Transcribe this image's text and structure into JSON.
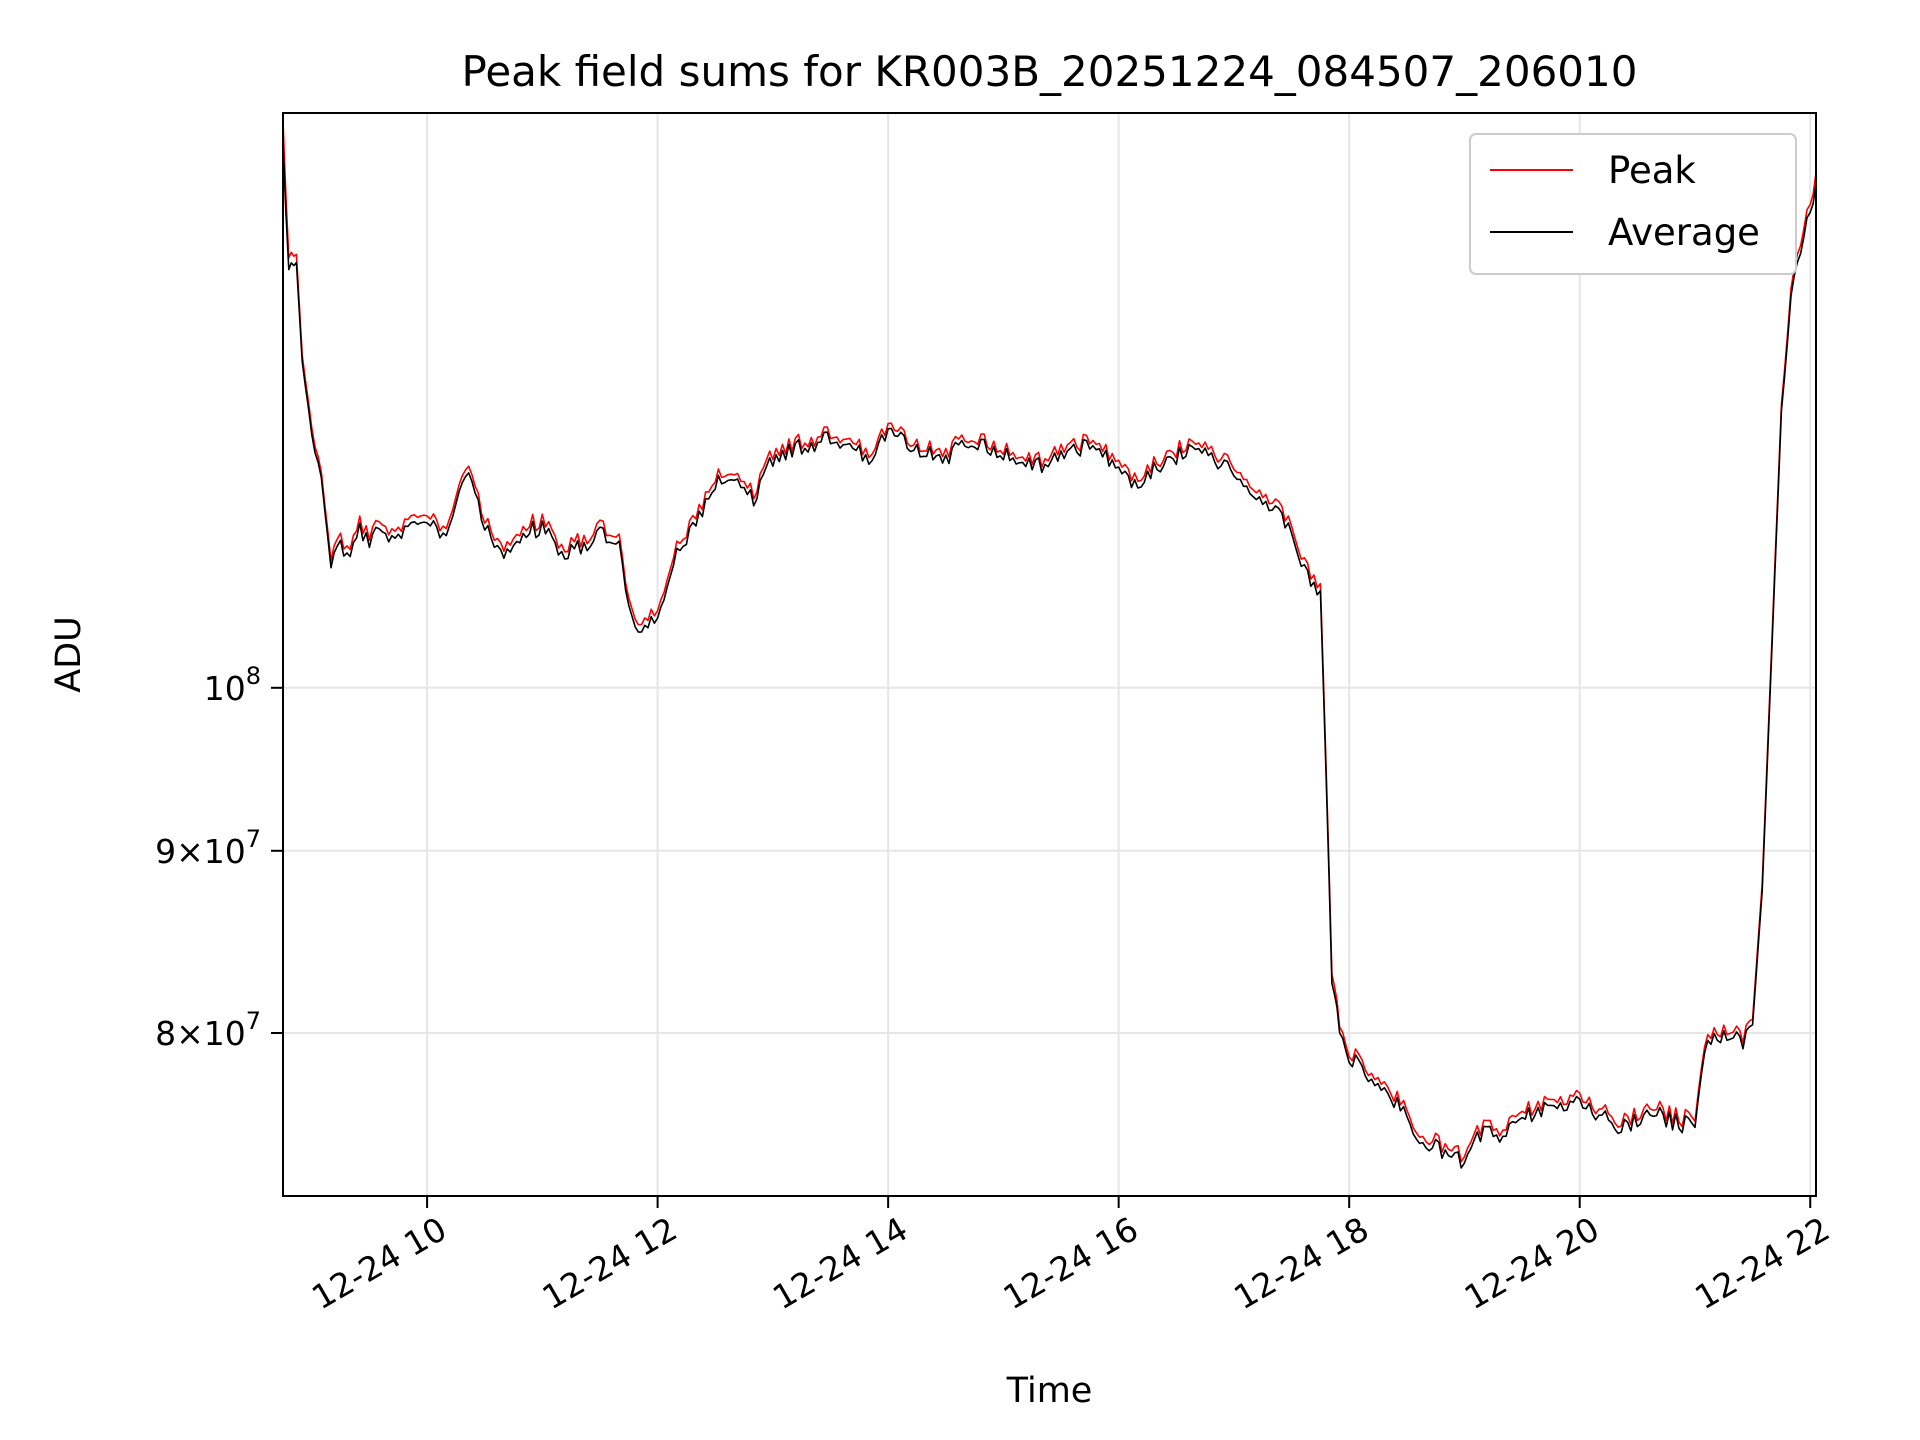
{
  "chart_data": {
    "type": "line",
    "title": "Peak field sums for KR003B_20251224_084507_206010",
    "xlabel": "Time",
    "ylabel": "ADU",
    "xscale": "time",
    "yscale": "log",
    "xlim": [
      "2025-12-24 08:45",
      "2025-12-24 22:03"
    ],
    "ylim": [
      72000000,
      145000000
    ],
    "grid": true,
    "legend_position": "top-right",
    "x_ticks": [
      {
        "value": "2025-12-24 10:00",
        "label": "12-24 10"
      },
      {
        "value": "2025-12-24 12:00",
        "label": "12-24 12"
      },
      {
        "value": "2025-12-24 14:00",
        "label": "12-24 14"
      },
      {
        "value": "2025-12-24 16:00",
        "label": "12-24 16"
      },
      {
        "value": "2025-12-24 18:00",
        "label": "12-24 18"
      },
      {
        "value": "2025-12-24 20:00",
        "label": "12-24 20"
      },
      {
        "value": "2025-12-24 22:00",
        "label": "12-24 22"
      }
    ],
    "y_ticks": [
      {
        "value": 100000000,
        "mantissa": "",
        "exponent": "8"
      },
      {
        "value": 90000000,
        "mantissa": "9",
        "exponent": "7"
      },
      {
        "value": 80000000,
        "mantissa": "8",
        "exponent": "7"
      }
    ],
    "series": [
      {
        "name": "Peak",
        "color": "#ff0000",
        "x": [
          "2025-12-24 08:45",
          "2025-12-24 08:48",
          "2025-12-24 08:52",
          "2025-12-24 08:55",
          "2025-12-24 09:00",
          "2025-12-24 09:05",
          "2025-12-24 09:10",
          "2025-12-24 09:15",
          "2025-12-24 09:20",
          "2025-12-24 09:25",
          "2025-12-24 09:30",
          "2025-12-24 09:35",
          "2025-12-24 09:40",
          "2025-12-24 09:45",
          "2025-12-24 09:50",
          "2025-12-24 10:00",
          "2025-12-24 10:10",
          "2025-12-24 10:20",
          "2025-12-24 10:30",
          "2025-12-24 10:40",
          "2025-12-24 10:50",
          "2025-12-24 11:00",
          "2025-12-24 11:10",
          "2025-12-24 11:20",
          "2025-12-24 11:30",
          "2025-12-24 11:40",
          "2025-12-24 11:45",
          "2025-12-24 11:50",
          "2025-12-24 11:55",
          "2025-12-24 12:00",
          "2025-12-24 12:10",
          "2025-12-24 12:20",
          "2025-12-24 12:30",
          "2025-12-24 12:40",
          "2025-12-24 12:50",
          "2025-12-24 13:00",
          "2025-12-24 13:10",
          "2025-12-24 13:20",
          "2025-12-24 13:30",
          "2025-12-24 13:40",
          "2025-12-24 13:50",
          "2025-12-24 14:00",
          "2025-12-24 14:10",
          "2025-12-24 14:20",
          "2025-12-24 14:30",
          "2025-12-24 14:40",
          "2025-12-24 14:50",
          "2025-12-24 15:00",
          "2025-12-24 15:10",
          "2025-12-24 15:20",
          "2025-12-24 15:30",
          "2025-12-24 15:40",
          "2025-12-24 15:50",
          "2025-12-24 16:00",
          "2025-12-24 16:10",
          "2025-12-24 16:20",
          "2025-12-24 16:30",
          "2025-12-24 16:40",
          "2025-12-24 16:50",
          "2025-12-24 17:00",
          "2025-12-24 17:10",
          "2025-12-24 17:20",
          "2025-12-24 17:30",
          "2025-12-24 17:35",
          "2025-12-24 17:40",
          "2025-12-24 17:45",
          "2025-12-24 17:48",
          "2025-12-24 17:51",
          "2025-12-24 17:55",
          "2025-12-24 18:00",
          "2025-12-24 18:10",
          "2025-12-24 18:20",
          "2025-12-24 18:30",
          "2025-12-24 18:40",
          "2025-12-24 18:50",
          "2025-12-24 19:00",
          "2025-12-24 19:10",
          "2025-12-24 19:20",
          "2025-12-24 19:30",
          "2025-12-24 19:40",
          "2025-12-24 19:50",
          "2025-12-24 20:00",
          "2025-12-24 20:10",
          "2025-12-24 20:20",
          "2025-12-24 20:30",
          "2025-12-24 20:40",
          "2025-12-24 20:50",
          "2025-12-24 21:00",
          "2025-12-24 21:05",
          "2025-12-24 21:15",
          "2025-12-24 21:25",
          "2025-12-24 21:30",
          "2025-12-24 21:35",
          "2025-12-24 21:40",
          "2025-12-24 21:45",
          "2025-12-24 21:50",
          "2025-12-24 21:55",
          "2025-12-24 22:00",
          "2025-12-24 22:03"
        ],
        "y": [
          144000000,
          131500000,
          132500000,
          124000000,
          118500000,
          115000000,
          108500000,
          110500000,
          109000000,
          111500000,
          110000000,
          111500000,
          111000000,
          110500000,
          111500000,
          112000000,
          110800000,
          115500000,
          111500000,
          109200000,
          111000000,
          111500000,
          109500000,
          110000000,
          111000000,
          110500000,
          105500000,
          104000000,
          104500000,
          105000000,
          109500000,
          111500000,
          114500000,
          115000000,
          113500000,
          116500000,
          117000000,
          117500000,
          117800000,
          117200000,
          116500000,
          118200000,
          117500000,
          117000000,
          116500000,
          117800000,
          117200000,
          116800000,
          116000000,
          115800000,
          116500000,
          117200000,
          116800000,
          115500000,
          114500000,
          115800000,
          116500000,
          117500000,
          116500000,
          115500000,
          114200000,
          112500000,
          111500000,
          108500000,
          107500000,
          107000000,
          95000000,
          83500000,
          80500000,
          79200000,
          78000000,
          77200000,
          76000000,
          74800000,
          74300000,
          73800000,
          75500000,
          75200000,
          76000000,
          76300000,
          76700000,
          77000000,
          76200000,
          75600000,
          75900000,
          76200000,
          75800000,
          75600000,
          79500000,
          80300000,
          79800000,
          80700000,
          88000000,
          103000000,
          120000000,
          129000000,
          133500000,
          136500000,
          139500000
        ]
      },
      {
        "name": "Average",
        "color": "#000000",
        "x": [
          "2025-12-24 08:45",
          "2025-12-24 08:48",
          "2025-12-24 08:52",
          "2025-12-24 08:55",
          "2025-12-24 09:00",
          "2025-12-24 09:05",
          "2025-12-24 09:10",
          "2025-12-24 09:15",
          "2025-12-24 09:20",
          "2025-12-24 09:25",
          "2025-12-24 09:30",
          "2025-12-24 09:35",
          "2025-12-24 09:40",
          "2025-12-24 09:45",
          "2025-12-24 09:50",
          "2025-12-24 10:00",
          "2025-12-24 10:10",
          "2025-12-24 10:20",
          "2025-12-24 10:30",
          "2025-12-24 10:40",
          "2025-12-24 10:50",
          "2025-12-24 11:00",
          "2025-12-24 11:10",
          "2025-12-24 11:20",
          "2025-12-24 11:30",
          "2025-12-24 11:40",
          "2025-12-24 11:45",
          "2025-12-24 11:50",
          "2025-12-24 11:55",
          "2025-12-24 12:00",
          "2025-12-24 12:10",
          "2025-12-24 12:20",
          "2025-12-24 12:30",
          "2025-12-24 12:40",
          "2025-12-24 12:50",
          "2025-12-24 13:00",
          "2025-12-24 13:10",
          "2025-12-24 13:20",
          "2025-12-24 13:30",
          "2025-12-24 13:40",
          "2025-12-24 13:50",
          "2025-12-24 14:00",
          "2025-12-24 14:10",
          "2025-12-24 14:20",
          "2025-12-24 14:30",
          "2025-12-24 14:40",
          "2025-12-24 14:50",
          "2025-12-24 15:00",
          "2025-12-24 15:10",
          "2025-12-24 15:20",
          "2025-12-24 15:30",
          "2025-12-24 15:40",
          "2025-12-24 15:50",
          "2025-12-24 16:00",
          "2025-12-24 16:10",
          "2025-12-24 16:20",
          "2025-12-24 16:30",
          "2025-12-24 16:40",
          "2025-12-24 16:50",
          "2025-12-24 17:00",
          "2025-12-24 17:10",
          "2025-12-24 17:20",
          "2025-12-24 17:30",
          "2025-12-24 17:35",
          "2025-12-24 17:40",
          "2025-12-24 17:45",
          "2025-12-24 17:48",
          "2025-12-24 17:51",
          "2025-12-24 17:55",
          "2025-12-24 18:00",
          "2025-12-24 18:10",
          "2025-12-24 18:20",
          "2025-12-24 18:30",
          "2025-12-24 18:40",
          "2025-12-24 18:50",
          "2025-12-24 19:00",
          "2025-12-24 19:10",
          "2025-12-24 19:20",
          "2025-12-24 19:30",
          "2025-12-24 19:40",
          "2025-12-24 19:50",
          "2025-12-24 20:00",
          "2025-12-24 20:10",
          "2025-12-24 20:20",
          "2025-12-24 20:30",
          "2025-12-24 20:40",
          "2025-12-24 20:50",
          "2025-12-24 21:00",
          "2025-12-24 21:05",
          "2025-12-24 21:15",
          "2025-12-24 21:25",
          "2025-12-24 21:30",
          "2025-12-24 21:35",
          "2025-12-24 21:40",
          "2025-12-24 21:45",
          "2025-12-24 21:50",
          "2025-12-24 21:55",
          "2025-12-24 22:00",
          "2025-12-24 22:03"
        ],
        "y": [
          142000000,
          130500000,
          131800000,
          123500000,
          118000000,
          114600000,
          108000000,
          110000000,
          108500000,
          111000000,
          109500000,
          111000000,
          110500000,
          110000000,
          111000000,
          111500000,
          110300000,
          115000000,
          111000000,
          108700000,
          110500000,
          111000000,
          109000000,
          109500000,
          110500000,
          110000000,
          105000000,
          103500000,
          104000000,
          104500000,
          109000000,
          111000000,
          114000000,
          114600000,
          113000000,
          116000000,
          116600000,
          117100000,
          117400000,
          116800000,
          116000000,
          117800000,
          117100000,
          116600000,
          116000000,
          117400000,
          116800000,
          116400000,
          115600000,
          115400000,
          116000000,
          116800000,
          116400000,
          115000000,
          114000000,
          115400000,
          116000000,
          117100000,
          116000000,
          115000000,
          113700000,
          112000000,
          111000000,
          108000000,
          107000000,
          106500000,
          94500000,
          83000000,
          80200000,
          78900000,
          77700000,
          76900000,
          75700000,
          74500000,
          74000000,
          73500000,
          75200000,
          74900000,
          75700000,
          76000000,
          76400000,
          76700000,
          75900000,
          75300000,
          75600000,
          75900000,
          75500000,
          75300000,
          79200000,
          80000000,
          79500000,
          80400000,
          87600000,
          102500000,
          119500000,
          128400000,
          132800000,
          135800000,
          138500000
        ]
      }
    ]
  }
}
